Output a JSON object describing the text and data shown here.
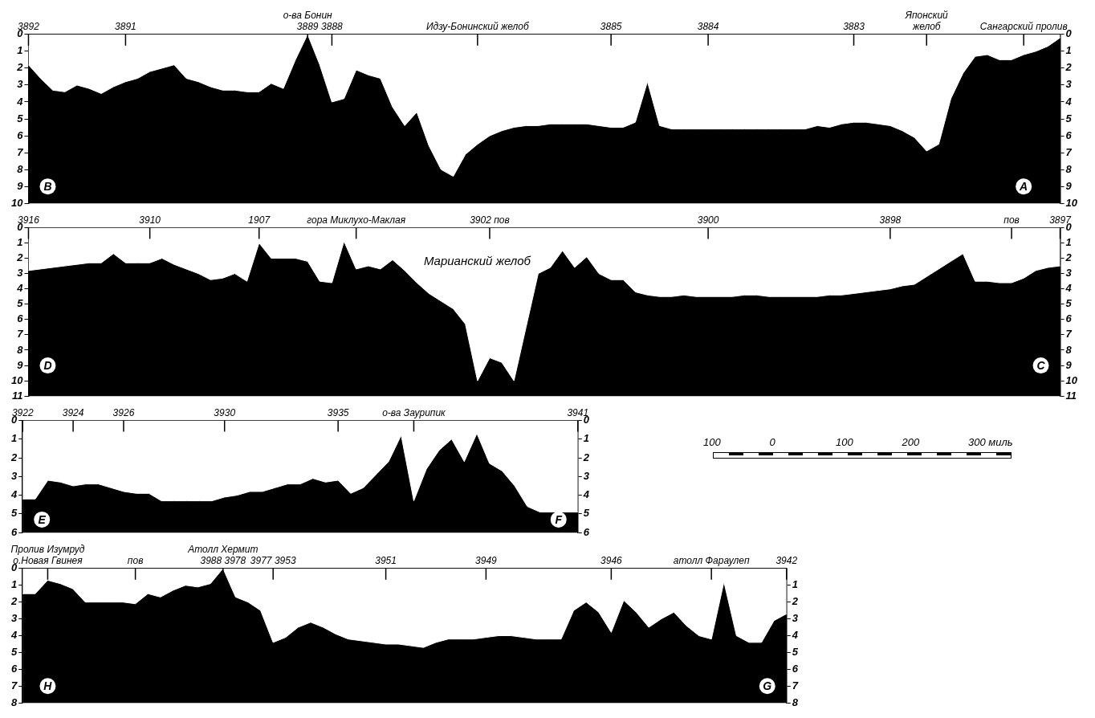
{
  "chart_data": [
    {
      "type": "area",
      "categories": [
        "3892",
        null,
        null,
        null,
        null,
        null,
        null,
        null,
        "3891",
        null,
        null,
        null,
        null,
        null,
        null,
        null,
        null,
        null,
        null,
        null,
        null,
        null,
        null,
        "о-ва Бонин\n3889",
        null,
        "3888",
        null,
        null,
        null,
        null,
        null,
        null,
        null,
        null,
        null,
        null,
        null,
        "Идзу-Бонинский желоб",
        null,
        null,
        null,
        null,
        null,
        null,
        null,
        null,
        null,
        null,
        "3885",
        null,
        null,
        null,
        null,
        null,
        null,
        null,
        "3884",
        null,
        null,
        null,
        null,
        null,
        null,
        null,
        null,
        null,
        null,
        null,
        "3883",
        null,
        null,
        null,
        null,
        null,
        "Японский\nжелоб",
        null,
        null,
        null,
        null,
        null,
        null,
        null,
        "Сангарский пролив",
        null,
        null,
        null
      ],
      "series": [
        {
          "color": "#ffffff",
          "values": [
            1.8,
            2.6,
            3.3,
            3.4,
            3.0,
            3.2,
            3.5,
            3.1,
            2.8,
            2.6,
            2.2,
            2.0,
            1.8,
            2.6,
            2.8,
            3.1,
            3.3,
            3.3,
            3.4,
            3.4,
            2.9,
            3.2,
            1.5,
            0,
            1.8,
            4.0,
            3.8,
            2.1,
            2.4,
            2.6,
            4.3,
            5.4,
            4.6,
            6.6,
            8.0,
            8.4,
            7.1,
            6.5,
            6.0,
            5.7,
            5.5,
            5.4,
            5.4,
            5.3,
            5.3,
            5.3,
            5.3,
            5.4,
            5.5,
            5.5,
            5.2,
            2.8,
            5.4,
            5.6,
            5.6,
            5.6,
            5.6,
            5.6,
            5.6,
            5.6,
            5.6,
            5.6,
            5.6,
            5.6,
            5.6,
            5.4,
            5.5,
            5.3,
            5.2,
            5.2,
            5.3,
            5.4,
            5.7,
            6.1,
            6.9,
            6.5,
            3.8,
            2.3,
            1.3,
            1.2,
            1.5,
            1.5,
            1.2,
            1.0,
            0.7,
            0.2
          ]
        }
      ],
      "bands": [
        {
          "axis": "y",
          "from": 0,
          "to": 10,
          "color": "#000000"
        }
      ],
      "ylim": [
        10,
        0
      ],
      "yticks": [
        0,
        1,
        2,
        3,
        4,
        5,
        6,
        7,
        8,
        9,
        10
      ],
      "y2lim": [
        10,
        0
      ],
      "y2ticks": [
        0,
        1,
        2,
        3,
        4,
        5,
        6,
        7,
        8,
        9,
        10
      ],
      "annotations": [
        {
          "text": "B",
          "x": "3892",
          "y": 9
        },
        {
          "text": "A",
          "x": "Сангарский пролив",
          "y": 9
        }
      ]
    },
    {
      "type": "area",
      "categories": [
        "3916",
        null,
        null,
        null,
        null,
        null,
        null,
        null,
        null,
        null,
        "3910",
        null,
        null,
        null,
        null,
        null,
        null,
        null,
        null,
        "1907",
        null,
        null,
        null,
        null,
        null,
        null,
        null,
        "гора Миклухо-Маклая",
        null,
        null,
        null,
        null,
        null,
        null,
        null,
        null,
        null,
        null,
        "3902 пов",
        null,
        null,
        null,
        null,
        null,
        null,
        null,
        null,
        null,
        null,
        null,
        null,
        null,
        null,
        null,
        null,
        null,
        "3900",
        null,
        null,
        null,
        null,
        null,
        null,
        null,
        null,
        null,
        null,
        null,
        null,
        null,
        null,
        "3898",
        null,
        null,
        null,
        null,
        null,
        null,
        null,
        null,
        null,
        "пов",
        null,
        null,
        null,
        "3897"
      ],
      "series": [
        {
          "color": "#ffffff",
          "values": [
            2.8,
            2.7,
            2.6,
            2.5,
            2.4,
            2.3,
            2.3,
            1.7,
            2.3,
            2.3,
            2.3,
            2.0,
            2.4,
            2.7,
            3.0,
            3.4,
            3.3,
            3.0,
            3.5,
            1.0,
            2.0,
            2.0,
            2.0,
            2.2,
            3.5,
            3.6,
            0.9,
            2.7,
            2.5,
            2.7,
            2.1,
            2.8,
            3.6,
            4.3,
            4.8,
            5.3,
            6.3,
            10.0,
            8.5,
            8.8,
            10.0,
            6.5,
            3.0,
            2.6,
            1.5,
            2.6,
            1.9,
            3.0,
            3.4,
            3.4,
            4.2,
            4.4,
            4.5,
            4.5,
            4.4,
            4.5,
            4.5,
            4.5,
            4.5,
            4.4,
            4.4,
            4.5,
            4.5,
            4.5,
            4.5,
            4.5,
            4.4,
            4.4,
            4.3,
            4.2,
            4.1,
            4.0,
            3.8,
            3.7,
            3.2,
            2.7,
            2.2,
            1.7,
            3.5,
            3.5,
            3.6,
            3.6,
            3.3,
            2.8,
            2.6,
            2.5
          ]
        }
      ],
      "bands": [
        {
          "axis": "y",
          "from": 0,
          "to": 11,
          "color": "#000000"
        }
      ],
      "ylim": [
        11,
        0
      ],
      "yticks": [
        0,
        1,
        2,
        3,
        4,
        5,
        6,
        7,
        8,
        9,
        10,
        11
      ],
      "y2lim": [
        11,
        0
      ],
      "y2ticks": [
        0,
        1,
        2,
        3,
        4,
        5,
        6,
        7,
        8,
        9,
        10,
        11
      ],
      "annotations": [
        {
          "text": "D",
          "x": "3916",
          "y": 9
        },
        {
          "text": "C",
          "x": "3897",
          "y": 9
        },
        "Марианский желоб"
      ]
    },
    {
      "type": "area",
      "categories": [
        "3922",
        null,
        null,
        null,
        "3924",
        null,
        null,
        null,
        "3926",
        null,
        null,
        null,
        null,
        null,
        null,
        null,
        "3930",
        null,
        null,
        null,
        null,
        null,
        null,
        null,
        null,
        "3935",
        null,
        null,
        null,
        null,
        null,
        "о-ва Заурипик",
        null,
        null,
        null,
        null,
        null,
        null,
        null,
        null,
        null,
        null,
        null,
        null,
        "3941"
      ],
      "series": [
        {
          "color": "#ffffff",
          "values": [
            4.2,
            4.2,
            3.2,
            3.3,
            3.5,
            3.4,
            3.4,
            3.6,
            3.8,
            3.9,
            3.9,
            4.3,
            4.3,
            4.3,
            4.3,
            4.3,
            4.1,
            4.0,
            3.8,
            3.8,
            3.6,
            3.4,
            3.4,
            3.1,
            3.3,
            3.2,
            3.9,
            3.6,
            2.9,
            2.2,
            0.8,
            4.3,
            2.6,
            1.6,
            1.0,
            2.2,
            0.7,
            2.3,
            2.7,
            3.5,
            4.6,
            4.9,
            4.9,
            4.9,
            4.9
          ]
        }
      ],
      "bands": [
        {
          "axis": "y",
          "from": 0,
          "to": 6,
          "color": "#000000"
        }
      ],
      "ylim": [
        6,
        0
      ],
      "yticks": [
        0,
        1,
        2,
        3,
        4,
        5,
        6
      ],
      "y2lim": [
        6,
        0
      ],
      "y2ticks": [
        0,
        1,
        2,
        3,
        4,
        5,
        6
      ],
      "annotations": [
        {
          "text": "E",
          "x": "3922",
          "y": 5.3
        },
        {
          "text": "F",
          "x": "3941",
          "y": 5.3
        }
      ]
    },
    {
      "type": "other",
      "categories": [
        "100",
        "0",
        "100",
        "200",
        "300 миль"
      ]
    },
    {
      "type": "area",
      "categories": [
        null,
        null,
        "Пролив Изумруд\nо.Новая Гвинея",
        null,
        null,
        null,
        null,
        null,
        null,
        "пов",
        null,
        null,
        null,
        null,
        null,
        null,
        "Атолл Хермит\n3988 3978",
        null,
        null,
        null,
        "3977 3953",
        null,
        null,
        null,
        null,
        null,
        null,
        null,
        null,
        "3951",
        null,
        null,
        null,
        null,
        null,
        null,
        null,
        "3949",
        null,
        null,
        null,
        null,
        null,
        null,
        null,
        null,
        null,
        "3946",
        null,
        null,
        null,
        null,
        null,
        null,
        null,
        "атолл Фараулеп",
        null,
        null,
        null,
        null,
        null,
        "3942"
      ],
      "series": [
        {
          "color": "#ffffff",
          "values": [
            1.5,
            1.5,
            0.7,
            0.9,
            1.2,
            2.0,
            2.0,
            2.0,
            2.0,
            2.1,
            1.5,
            1.7,
            1.3,
            1.0,
            1.1,
            0.9,
            0.0,
            1.7,
            2.0,
            2.5,
            4.4,
            4.1,
            3.5,
            3.2,
            3.5,
            3.9,
            4.2,
            4.3,
            4.4,
            4.5,
            4.5,
            4.6,
            4.7,
            4.4,
            4.2,
            4.2,
            4.2,
            4.1,
            4.0,
            4.0,
            4.1,
            4.2,
            4.2,
            4.2,
            2.5,
            2.0,
            2.6,
            3.8,
            1.9,
            2.6,
            3.5,
            3.0,
            2.6,
            3.4,
            4.0,
            4.2,
            0.8,
            4.0,
            4.4,
            4.4,
            3.1,
            2.7
          ]
        }
      ],
      "bands": [
        {
          "axis": "y",
          "from": 0,
          "to": 8,
          "color": "#000000"
        }
      ],
      "ylim": [
        8,
        0
      ],
      "yticks": [
        0,
        1,
        2,
        3,
        4,
        5,
        6,
        7,
        8
      ],
      "y2lim": [
        8,
        0
      ],
      "y2ticks": [
        1,
        2,
        3,
        4,
        5,
        6,
        7,
        8
      ],
      "annotations": [
        {
          "text": "H",
          "x": "Пролив Изумруд\nо.Новая Гвинея",
          "y": 7
        },
        {
          "text": "G",
          "x": "3942",
          "y": 7
        }
      ]
    }
  ]
}
